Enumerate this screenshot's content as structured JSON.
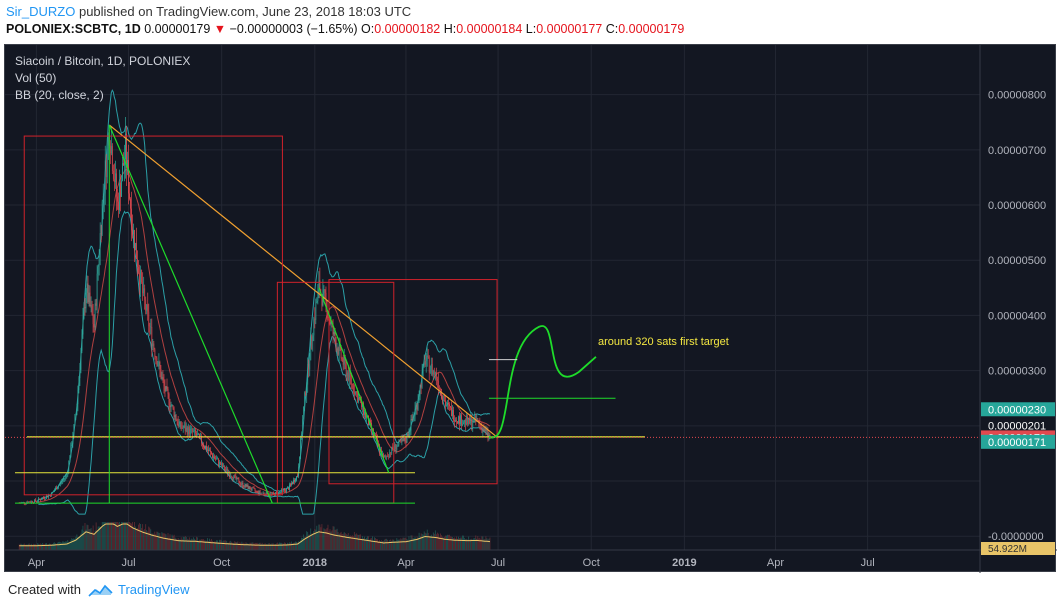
{
  "header": {
    "author": "Sir_DURZO",
    "published_text": "published on TradingView.com, June 23, 2018 18:03 UTC",
    "symbol": "POLONIEX:SCBTC, 1D",
    "last": "0.00000179",
    "arrow": "▼",
    "change": "−0.00000003 (−1.65%)",
    "o_label": "O:",
    "o_value": "0.00000182",
    "h_label": "H:",
    "h_value": "0.00000184",
    "l_label": "L:",
    "l_value": "0.00000177",
    "c_label": "C:",
    "c_value": "0.00000179"
  },
  "legend": {
    "pair": "Siacoin / Bitcoin, 1D, POLONIEX",
    "vol": "Vol (50)",
    "bb": "BB (20, close, 2)"
  },
  "annotation": "around 320 sats first target",
  "footer": {
    "created_with": "Created with",
    "brand": "TradingView"
  },
  "colors": {
    "background": "#131722",
    "up": "#2fa89a",
    "down": "#e2494f",
    "bb": "#2b9fa6",
    "trend": "#f0a030",
    "box": "#d0222b",
    "support": "#e6e63a",
    "green": "#1edc2a",
    "volume_ma": "#e8c468",
    "last_price": "#e2494f",
    "axis_text": "#b2b5be"
  },
  "chart_data": {
    "type": "candlestick",
    "y_unit": "BTC",
    "ylim": [
      -2.5e-07,
      8.9e-06
    ],
    "y_ticks": [
      "0.00000800",
      "0.00000700",
      "0.00000600",
      "0.00000500",
      "0.00000400",
      "0.00000300",
      "-0.0000000"
    ],
    "x_ticks": [
      "Apr",
      "Jul",
      "Oct",
      "2018",
      "Apr",
      "Jul",
      "Oct",
      "2019",
      "Apr",
      "Jul"
    ],
    "price_badges": [
      {
        "value": "0.00000230",
        "price": 2.3e-06,
        "color": "#26a69a"
      },
      {
        "value": "0.00000201",
        "price": 2.01e-06,
        "color": "#131722"
      },
      {
        "value": "0.00000179",
        "price": 1.79e-06,
        "color": "#e2494f"
      },
      {
        "value": "0.00000171",
        "price": 1.71e-06,
        "color": "#26a69a"
      }
    ],
    "volume_badge": "54.922M",
    "price_path": [
      [
        "2017-03-15",
        6e-07
      ],
      [
        "2017-04-01",
        6.4e-07
      ],
      [
        "2017-04-15",
        7.5e-07
      ],
      [
        "2017-05-01",
        1.1e-06
      ],
      [
        "2017-05-10",
        2.2e-06
      ],
      [
        "2017-05-20",
        4.5e-06
      ],
      [
        "2017-05-28",
        3.8e-06
      ],
      [
        "2017-06-05",
        6e-06
      ],
      [
        "2017-06-12",
        7.4e-06
      ],
      [
        "2017-06-20",
        6e-06
      ],
      [
        "2017-06-28",
        7e-06
      ],
      [
        "2017-07-05",
        5.6e-06
      ],
      [
        "2017-07-15",
        4.4e-06
      ],
      [
        "2017-07-25",
        3.5e-06
      ],
      [
        "2017-08-05",
        2.7e-06
      ],
      [
        "2017-08-20",
        2e-06
      ],
      [
        "2017-09-05",
        1.85e-06
      ],
      [
        "2017-09-20",
        1.5e-06
      ],
      [
        "2017-10-05",
        1.2e-06
      ],
      [
        "2017-10-20",
        9.5e-07
      ],
      [
        "2017-11-05",
        8e-07
      ],
      [
        "2017-11-20",
        7.5e-07
      ],
      [
        "2017-12-05",
        8.5e-07
      ],
      [
        "2017-12-15",
        1.1e-06
      ],
      [
        "2017-12-22",
        2.5e-06
      ],
      [
        "2017-12-30",
        3.8e-06
      ],
      [
        "2018-01-05",
        4.5e-06
      ],
      [
        "2018-01-12",
        4.2e-06
      ],
      [
        "2018-01-20",
        3.6e-06
      ],
      [
        "2018-02-01",
        3e-06
      ],
      [
        "2018-02-15",
        2.4e-06
      ],
      [
        "2018-03-01",
        1.8e-06
      ],
      [
        "2018-03-10",
        1.4e-06
      ],
      [
        "2018-03-20",
        1.6e-06
      ],
      [
        "2018-04-01",
        1.75e-06
      ],
      [
        "2018-04-12",
        2.4e-06
      ],
      [
        "2018-04-20",
        3.2e-06
      ],
      [
        "2018-05-01",
        2.9e-06
      ],
      [
        "2018-05-10",
        2.4e-06
      ],
      [
        "2018-05-20",
        2.15e-06
      ],
      [
        "2018-06-01",
        2.05e-06
      ],
      [
        "2018-06-10",
        2.1e-06
      ],
      [
        "2018-06-18",
        1.9e-06
      ],
      [
        "2018-06-23",
        1.79e-06
      ]
    ],
    "drawings": {
      "descending_trendline": [
        [
          "2017-06-12",
          7.45e-06
        ],
        [
          "2018-07-01",
          1.78e-06
        ]
      ],
      "box_1": [
        [
          "2017-03-20",
          7.25e-06
        ],
        [
          "2017-11-30",
          7.5e-07
        ]
      ],
      "box_2": [
        [
          "2017-11-25",
          4.6e-06
        ],
        [
          "2018-03-20",
          6e-07
        ]
      ],
      "box_3": [
        [
          "2018-01-15",
          4.65e-06
        ],
        [
          "2018-06-30",
          9.5e-07
        ]
      ],
      "support_line": 1.8e-06,
      "lower_line": 1.15e-06,
      "base_line": 6e-07
    }
  }
}
